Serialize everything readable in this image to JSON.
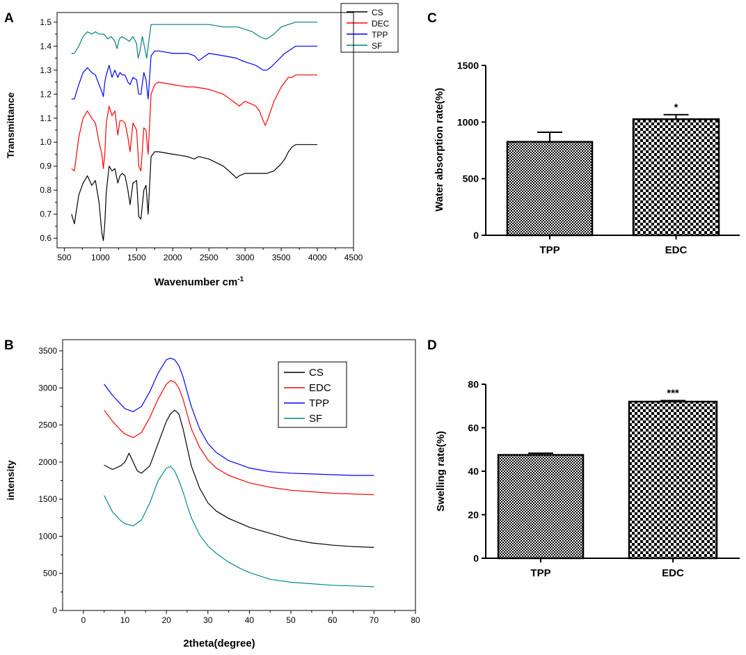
{
  "chart_data": [
    {
      "id": "A",
      "panel_label": "A",
      "type": "line",
      "xlabel": "Wavenumber cm",
      "xlabel_sup": "-1",
      "ylabel": "Transmittance",
      "xlim": [
        400,
        4500
      ],
      "ylim": [
        0.56,
        1.54
      ],
      "x_ticks": [
        "500",
        "1000",
        "1500",
        "2000",
        "2500",
        "3000",
        "3500",
        "4000",
        "4500"
      ],
      "y_ticks": [
        "0.6",
        "0.7",
        "0.8",
        "0.9",
        "1.0",
        "1.1",
        "1.2",
        "1.3",
        "1.4",
        "1.5"
      ],
      "legend": [
        "CS",
        "DEC",
        "TPP",
        "SF"
      ],
      "series": [
        {
          "name": "CS",
          "color": "#000000",
          "x": [
            600,
            640,
            700,
            760,
            820,
            880,
            930,
            980,
            1020,
            1040,
            1060,
            1080,
            1120,
            1160,
            1200,
            1240,
            1270,
            1300,
            1340,
            1380,
            1410,
            1450,
            1500,
            1530,
            1560,
            1600,
            1630,
            1660,
            1700,
            1750,
            1800,
            2000,
            2200,
            2300,
            2360,
            2500,
            2700,
            2850,
            2880,
            2920,
            3000,
            3100,
            3200,
            3300,
            3400,
            3500,
            3550,
            3600,
            3650,
            3700,
            4000
          ],
          "y": [
            0.7,
            0.66,
            0.78,
            0.83,
            0.86,
            0.82,
            0.84,
            0.75,
            0.62,
            0.59,
            0.66,
            0.79,
            0.9,
            0.88,
            0.89,
            0.83,
            0.86,
            0.87,
            0.86,
            0.8,
            0.74,
            0.83,
            0.84,
            0.69,
            0.68,
            0.8,
            0.82,
            0.7,
            0.94,
            0.96,
            0.96,
            0.95,
            0.94,
            0.93,
            0.94,
            0.93,
            0.9,
            0.86,
            0.85,
            0.86,
            0.87,
            0.87,
            0.87,
            0.87,
            0.88,
            0.91,
            0.93,
            0.96,
            0.98,
            0.99,
            0.99
          ]
        },
        {
          "name": "DEC",
          "color": "#ff0000",
          "x": [
            600,
            640,
            700,
            760,
            820,
            880,
            930,
            980,
            1020,
            1040,
            1060,
            1080,
            1120,
            1160,
            1200,
            1240,
            1270,
            1300,
            1340,
            1380,
            1410,
            1450,
            1500,
            1530,
            1560,
            1600,
            1630,
            1660,
            1700,
            1750,
            1800,
            2000,
            2200,
            2300,
            2500,
            2700,
            2880,
            2920,
            3000,
            3080,
            3150,
            3200,
            3250,
            3280,
            3320,
            3400,
            3500,
            3600,
            3650,
            3700,
            4000
          ],
          "y": [
            0.89,
            0.88,
            1.02,
            1.1,
            1.13,
            1.1,
            1.08,
            1.0,
            0.95,
            0.89,
            0.95,
            1.08,
            1.15,
            1.11,
            1.13,
            1.03,
            1.09,
            1.09,
            1.08,
            1.02,
            0.96,
            1.08,
            1.05,
            0.9,
            0.88,
            1.06,
            1.05,
            0.95,
            1.2,
            1.24,
            1.25,
            1.24,
            1.23,
            1.23,
            1.22,
            1.2,
            1.16,
            1.15,
            1.17,
            1.16,
            1.15,
            1.13,
            1.09,
            1.07,
            1.1,
            1.17,
            1.23,
            1.27,
            1.27,
            1.28,
            1.28
          ]
        },
        {
          "name": "TPP",
          "color": "#0000ff",
          "x": [
            600,
            640,
            700,
            760,
            820,
            880,
            930,
            980,
            1020,
            1040,
            1060,
            1080,
            1120,
            1160,
            1200,
            1240,
            1270,
            1300,
            1340,
            1380,
            1410,
            1450,
            1500,
            1530,
            1560,
            1600,
            1630,
            1660,
            1700,
            1750,
            1800,
            2000,
            2200,
            2300,
            2360,
            2500,
            2700,
            2880,
            2950,
            3050,
            3150,
            3250,
            3300,
            3350,
            3450,
            3550,
            3650,
            3700,
            4000
          ],
          "y": [
            1.18,
            1.18,
            1.24,
            1.29,
            1.31,
            1.29,
            1.28,
            1.24,
            1.21,
            1.19,
            1.25,
            1.28,
            1.32,
            1.27,
            1.3,
            1.27,
            1.29,
            1.28,
            1.28,
            1.25,
            1.24,
            1.27,
            1.26,
            1.2,
            1.2,
            1.29,
            1.26,
            1.18,
            1.36,
            1.38,
            1.38,
            1.37,
            1.37,
            1.36,
            1.34,
            1.37,
            1.36,
            1.35,
            1.34,
            1.33,
            1.32,
            1.3,
            1.3,
            1.31,
            1.34,
            1.37,
            1.39,
            1.4,
            1.4
          ]
        },
        {
          "name": "SF",
          "color": "#008080",
          "x": [
            600,
            640,
            700,
            760,
            820,
            880,
            930,
            980,
            1050,
            1100,
            1150,
            1200,
            1230,
            1260,
            1300,
            1350,
            1400,
            1450,
            1500,
            1520,
            1540,
            1580,
            1620,
            1640,
            1660,
            1700,
            1750,
            1800,
            2000,
            2200,
            2500,
            2700,
            2900,
            3000,
            3100,
            3200,
            3280,
            3300,
            3400,
            3500,
            3600,
            3700,
            4000
          ],
          "y": [
            1.37,
            1.37,
            1.4,
            1.44,
            1.46,
            1.45,
            1.46,
            1.45,
            1.45,
            1.43,
            1.44,
            1.42,
            1.39,
            1.43,
            1.44,
            1.43,
            1.42,
            1.44,
            1.41,
            1.35,
            1.37,
            1.44,
            1.38,
            1.35,
            1.4,
            1.49,
            1.49,
            1.49,
            1.49,
            1.49,
            1.49,
            1.48,
            1.48,
            1.47,
            1.46,
            1.44,
            1.43,
            1.43,
            1.45,
            1.48,
            1.49,
            1.5,
            1.5
          ]
        }
      ]
    },
    {
      "id": "B",
      "panel_label": "B",
      "type": "line",
      "xlabel": "2theta(degree)",
      "ylabel": "intensity",
      "xlim": [
        -5,
        80
      ],
      "ylim": [
        0,
        3650
      ],
      "x_ticks": [
        "0",
        "10",
        "20",
        "30",
        "40",
        "50",
        "60",
        "70",
        "80"
      ],
      "y_ticks": [
        "0",
        "500",
        "1000",
        "1500",
        "2000",
        "2500",
        "3000",
        "3500"
      ],
      "legend": [
        "CS",
        "EDC",
        "TPP",
        "SF"
      ],
      "series": [
        {
          "name": "CS",
          "color": "#000000",
          "x": [
            5,
            7,
            9,
            10,
            11,
            12,
            13,
            14,
            16,
            18,
            20,
            21,
            22,
            23,
            24,
            25,
            26,
            28,
            30,
            32,
            35,
            38,
            40,
            45,
            50,
            55,
            60,
            65,
            70
          ],
          "y": [
            1960,
            1900,
            1950,
            2000,
            2120,
            2000,
            1880,
            1850,
            1950,
            2250,
            2550,
            2650,
            2700,
            2650,
            2450,
            2200,
            1950,
            1650,
            1450,
            1340,
            1240,
            1170,
            1120,
            1040,
            960,
            910,
            880,
            860,
            850
          ]
        },
        {
          "name": "EDC",
          "color": "#ff0000",
          "x": [
            5,
            7,
            9,
            10,
            12,
            14,
            16,
            18,
            20,
            21,
            22,
            23,
            24,
            25,
            26,
            28,
            30,
            32,
            35,
            38,
            40,
            45,
            50,
            55,
            60,
            65,
            70
          ],
          "y": [
            2700,
            2550,
            2430,
            2380,
            2330,
            2400,
            2600,
            2850,
            3050,
            3100,
            3080,
            3000,
            2850,
            2650,
            2450,
            2200,
            2030,
            1920,
            1820,
            1760,
            1720,
            1660,
            1620,
            1600,
            1580,
            1570,
            1560
          ]
        },
        {
          "name": "TPP",
          "color": "#0000ff",
          "x": [
            5,
            7,
            9,
            10,
            12,
            14,
            16,
            18,
            20,
            21,
            22,
            23,
            24,
            25,
            26,
            28,
            30,
            32,
            35,
            38,
            40,
            45,
            50,
            55,
            60,
            65,
            70
          ],
          "y": [
            3050,
            2900,
            2780,
            2720,
            2680,
            2750,
            2950,
            3200,
            3380,
            3400,
            3380,
            3300,
            3150,
            2950,
            2750,
            2450,
            2250,
            2130,
            2020,
            1960,
            1920,
            1870,
            1850,
            1840,
            1830,
            1820,
            1820
          ]
        },
        {
          "name": "SF",
          "color": "#008b8b",
          "x": [
            5,
            7,
            9,
            10,
            12,
            14,
            16,
            18,
            20,
            21,
            22,
            23,
            24,
            25,
            26,
            28,
            30,
            32,
            35,
            38,
            40,
            45,
            50,
            55,
            60,
            65,
            70
          ],
          "y": [
            1550,
            1330,
            1210,
            1170,
            1140,
            1220,
            1450,
            1750,
            1920,
            1940,
            1880,
            1750,
            1600,
            1420,
            1250,
            1020,
            870,
            770,
            650,
            560,
            510,
            420,
            380,
            360,
            340,
            330,
            320
          ]
        }
      ]
    },
    {
      "id": "C",
      "panel_label": "C",
      "type": "bar",
      "ylabel": "Water absorption rate(%)",
      "ylim": [
        0,
        1500
      ],
      "y_ticks": [
        "0",
        "500",
        "1000",
        "1500"
      ],
      "categories": [
        "TPP",
        "EDC"
      ],
      "values": [
        825,
        1025
      ],
      "errors": [
        85,
        40
      ],
      "annotations": [
        "",
        "*"
      ]
    },
    {
      "id": "D",
      "panel_label": "D",
      "type": "bar",
      "ylabel": "Swelling rate(%)",
      "ylim": [
        0,
        80
      ],
      "y_ticks": [
        "0",
        "20",
        "40",
        "60",
        "80"
      ],
      "categories": [
        "TPP",
        "EDC"
      ],
      "values": [
        47.5,
        72
      ],
      "errors": [
        0.8,
        0.5
      ],
      "annotations": [
        "",
        "***"
      ]
    }
  ]
}
